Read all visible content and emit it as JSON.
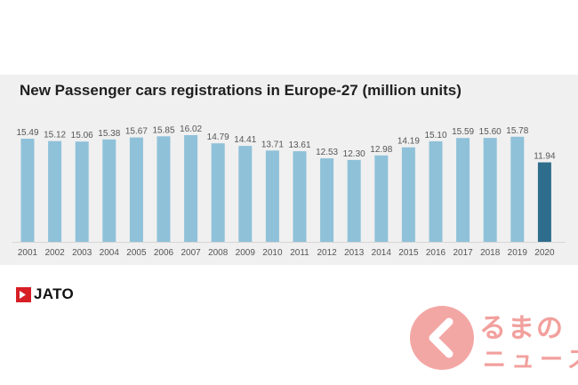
{
  "chart_data": {
    "type": "bar",
    "title": "New Passenger cars registrations in Europe-27 (million units)",
    "categories": [
      "2001",
      "2002",
      "2003",
      "2004",
      "2005",
      "2006",
      "2007",
      "2008",
      "2009",
      "2010",
      "2011",
      "2012",
      "2013",
      "2014",
      "2015",
      "2016",
      "2017",
      "2018",
      "2019",
      "2020"
    ],
    "values": [
      15.49,
      15.12,
      15.06,
      15.38,
      15.67,
      15.85,
      16.02,
      14.79,
      14.41,
      13.71,
      13.61,
      12.53,
      12.3,
      12.98,
      14.19,
      15.1,
      15.59,
      15.6,
      15.78,
      11.94
    ],
    "value_labels": [
      "15.49",
      "15.12",
      "15.06",
      "15.38",
      "15.67",
      "15.85",
      "16.02",
      "14.79",
      "14.41",
      "13.71",
      "13.61",
      "12.53",
      "12.30",
      "12.98",
      "14.19",
      "15.10",
      "15.59",
      "15.60",
      "15.78",
      "11.94"
    ],
    "highlight_category": "2020",
    "xlabel": "",
    "ylabel": "",
    "ylim": [
      0,
      16.02
    ],
    "colors": {
      "bar": "#8fc1d9",
      "highlight": "#2f6d8c",
      "label": "#555555",
      "panel": "#f0f0f0"
    }
  },
  "branding": {
    "source_logo": "JATO",
    "watermark_line1": "るまの",
    "watermark_line2": "ニュース"
  }
}
